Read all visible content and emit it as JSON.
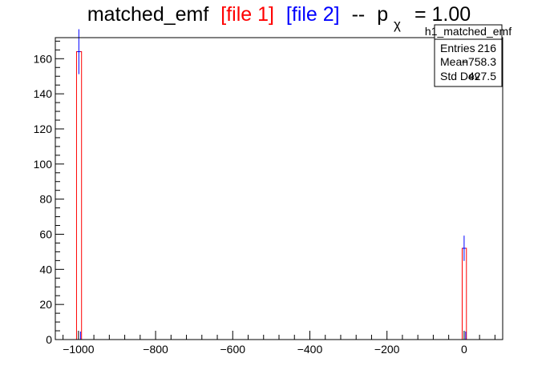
{
  "title": {
    "base": "matched_emf",
    "file1": "[file 1]",
    "file2": "[file 2]",
    "sep": "--",
    "p": "p",
    "sub": "χ",
    "pval": "= 1.00"
  },
  "stats": {
    "name": "h1_matched_emf",
    "rows": [
      {
        "label": "Entries",
        "value": "216"
      },
      {
        "label": "Mean",
        "value": "−758.3"
      },
      {
        "label": "Std Dev",
        "value": "427.5"
      }
    ]
  },
  "colors": {
    "file1": "#ff0000",
    "file2": "#0000ff",
    "frame": "#000000"
  },
  "chart_data": {
    "type": "bar",
    "xlim": [
      -1060,
      100
    ],
    "ylim": [
      0,
      172
    ],
    "x_ticks": [
      {
        "value": -1000,
        "label": "−1000"
      },
      {
        "value": -800,
        "label": "−800"
      },
      {
        "value": -600,
        "label": "−600"
      },
      {
        "value": -400,
        "label": "−400"
      },
      {
        "value": -200,
        "label": "−200"
      },
      {
        "value": 0,
        "label": "0"
      }
    ],
    "y_ticks": [
      0,
      20,
      40,
      60,
      80,
      100,
      120,
      140,
      160
    ],
    "series": [
      {
        "name": "file 1",
        "color": "#ff0000",
        "bins": [
          {
            "x_low": -1005,
            "x_high": -992,
            "y": 164
          },
          {
            "x_low": -5,
            "x_high": 6,
            "y": 52
          }
        ]
      },
      {
        "name": "file 2",
        "color": "#0000ff",
        "points": [
          {
            "x": -999,
            "y": 164,
            "err": 12.8
          },
          {
            "x": 0,
            "y": 52,
            "err": 7.2
          }
        ]
      }
    ]
  }
}
